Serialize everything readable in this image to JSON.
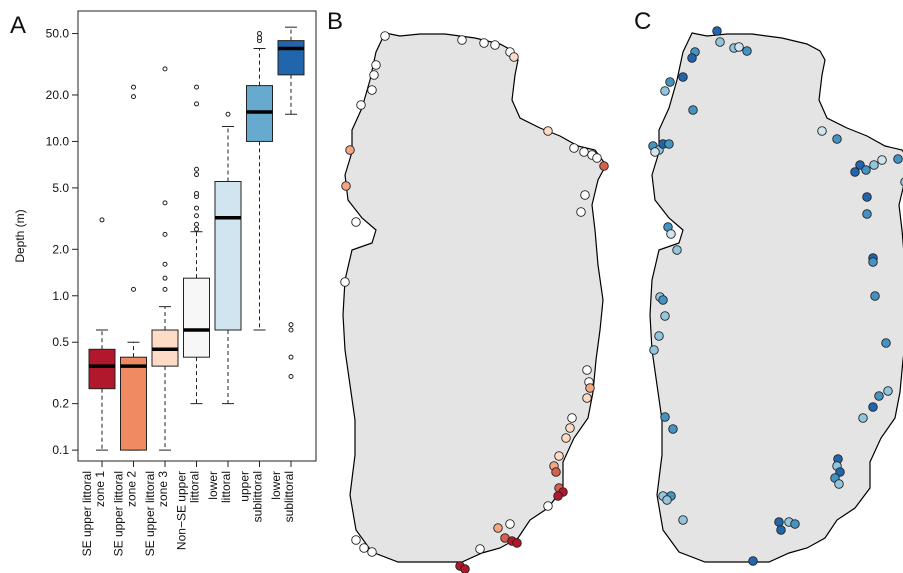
{
  "panels": {
    "a": "A",
    "b": "B",
    "c": "C"
  },
  "chart_data": {
    "type": "box",
    "ylabel": "Depth (m)",
    "yscale": "log",
    "ylim": [
      0.085,
      70
    ],
    "yticks": [
      0.1,
      0.2,
      0.5,
      1.0,
      2.0,
      5.0,
      10.0,
      20.0,
      50.0
    ],
    "ytick_labels": [
      "0.1",
      "0.2",
      "0.5",
      "1.0",
      "2.0",
      "5.0",
      "10.0",
      "20.0",
      "50.0"
    ],
    "categories": [
      [
        "SE upper littoral",
        "zone 1"
      ],
      [
        "SE upper littoral",
        "zone 2"
      ],
      [
        "SE upper littoral",
        "zone 3"
      ],
      [
        "Non−SE upper",
        "littoral"
      ],
      [
        "lower",
        "littoral"
      ],
      [
        "upper",
        "sublittoral"
      ],
      [
        "lower",
        "sublittoral"
      ]
    ],
    "boxes": [
      {
        "color": "#b2182b",
        "whisker_low": 0.1,
        "q1": 0.25,
        "median": 0.35,
        "q3": 0.45,
        "whisker_high": 0.6,
        "outliers": [
          3.1
        ]
      },
      {
        "color": "#ef8a62",
        "whisker_low": 0.1,
        "q1": 0.1,
        "median": 0.35,
        "q3": 0.4,
        "whisker_high": 0.5,
        "outliers": [
          1.1,
          19.5,
          22.5
        ]
      },
      {
        "color": "#fddbc7",
        "whisker_low": 0.1,
        "q1": 0.35,
        "median": 0.45,
        "q3": 0.6,
        "whisker_high": 0.85,
        "outliers": [
          1.1,
          1.3,
          1.6,
          2.5,
          4.0,
          29.5
        ]
      },
      {
        "color": "#f7f7f7",
        "whisker_low": 0.2,
        "q1": 0.4,
        "median": 0.6,
        "q3": 1.3,
        "whisker_high": 2.6,
        "outliers": [
          2.7,
          2.9,
          3.3,
          3.7,
          4.4,
          4.6,
          6.1,
          6.6,
          17.5,
          22.5
        ]
      },
      {
        "color": "#d1e5f0",
        "whisker_low": 0.2,
        "q1": 0.6,
        "median": 3.2,
        "q3": 5.5,
        "whisker_high": 12.5,
        "outliers": [
          15.0
        ]
      },
      {
        "color": "#67a9cf",
        "whisker_low": 0.6,
        "q1": 10.0,
        "median": 15.5,
        "q3": 23.0,
        "whisker_high": 40.0,
        "outliers": [
          45.0,
          47.0,
          50.0
        ]
      },
      {
        "color": "#2166ac",
        "whisker_low": 15.0,
        "q1": 27.0,
        "median": 40.0,
        "q3": 45.0,
        "whisker_high": 55.0,
        "outliers": [
          0.3,
          0.4,
          0.6,
          0.65
        ]
      }
    ]
  },
  "maps": {
    "land_color": "#e4e4e4",
    "b_colors": [
      "#ffffff",
      "#fddbc7",
      "#f4a582",
      "#d6604d",
      "#b2182b"
    ],
    "c_colors": [
      "#d1e5f0",
      "#92c5de",
      "#4393c3",
      "#2166ac"
    ]
  }
}
